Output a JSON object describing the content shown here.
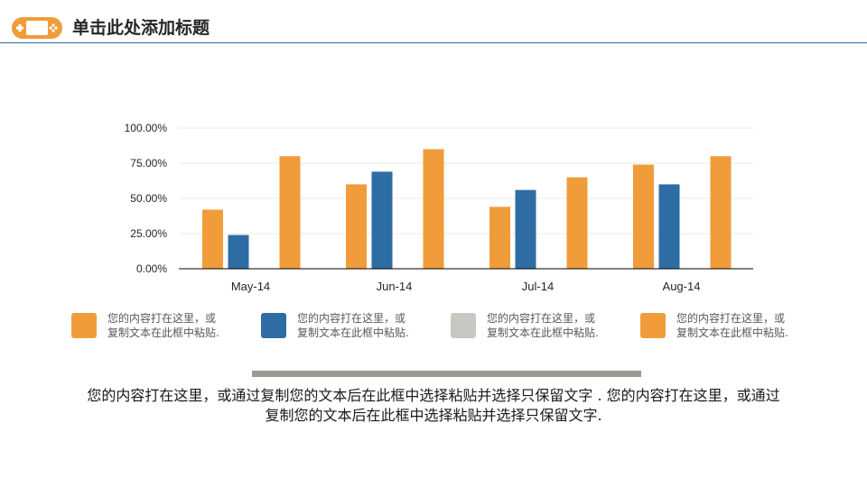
{
  "header": {
    "title": "单击此处添加标题",
    "logo_icon": "gamepad-icon",
    "accent_color": "#f09c3a",
    "rule_color": "#2f6b9a"
  },
  "chart_data": {
    "type": "bar",
    "categories": [
      "May-14",
      "Jun-14",
      "Jul-14",
      "Aug-14"
    ],
    "series": [
      {
        "values": [
          0.42,
          0.6,
          0.44,
          0.74
        ],
        "color": "#f09c3a"
      },
      {
        "values": [
          0.24,
          0.69,
          0.56,
          0.6
        ],
        "color": "#2e6da4"
      },
      {
        "values": [
          0,
          0,
          0,
          0
        ],
        "color": "#c8c8c2"
      },
      {
        "values": [
          0.8,
          0.85,
          0.65,
          0.8
        ],
        "color": "#f09c3a"
      }
    ],
    "y_ticks": [
      "0.00%",
      "25.00%",
      "50.00%",
      "75.00%",
      "100.00%"
    ],
    "ylim": [
      0,
      1
    ],
    "grid": true,
    "legend_position": "bottom"
  },
  "legend": [
    {
      "text": "您的内容打在这里，或\n复制文本在此框中粘贴.",
      "color": "#f09c3a"
    },
    {
      "text": "您的内容打在这里，或\n复制文本在此框中粘贴.",
      "color": "#2e6da4"
    },
    {
      "text": "您的内容打在这里，或\n复制文本在此框中粘贴.",
      "color": "#c8c8c2"
    },
    {
      "text": "您的内容打在这里，或\n复制文本在此框中粘贴.",
      "color": "#f09c3a"
    }
  ],
  "body_text": "您的内容打在这里，或通过复制您的文本后在此框中选择粘贴并选择只保留文字 . 您的内容打在这里，或通过复制您的文本后在此框中选择粘贴并选择只保留文字."
}
